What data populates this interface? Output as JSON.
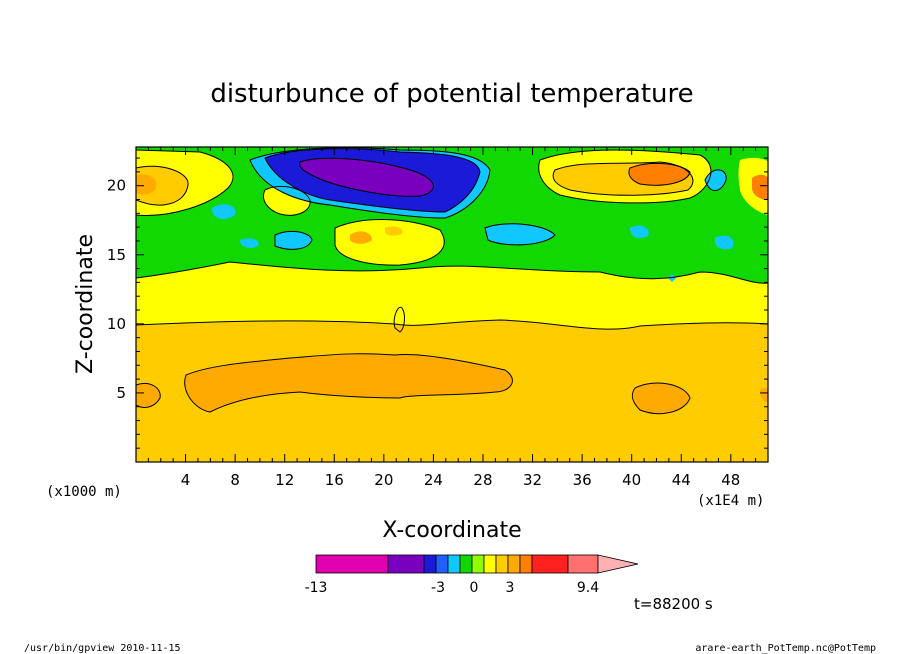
{
  "chart_data": {
    "type": "contour",
    "title": "disturbunce of potential temperature",
    "xlabel": "X-coordinate",
    "ylabel": "Z-coordinate",
    "x_unit_left": "(x1000 m)",
    "x_unit_right": "(x1E4 m)",
    "xlim": [
      0,
      51
    ],
    "ylim": [
      0,
      22.8
    ],
    "x_ticks": [
      4,
      8,
      12,
      16,
      20,
      24,
      28,
      32,
      36,
      40,
      44,
      48
    ],
    "y_ticks": [
      5,
      10,
      15,
      20
    ],
    "colorbar": {
      "colors": [
        "#e000b0",
        "#7a00c0",
        "#1a1ad8",
        "#2060ff",
        "#10c8ff",
        "#10d800",
        "#90ff00",
        "#ffff00",
        "#ffcc00",
        "#ffaa00",
        "#ff8000",
        "#ff2020",
        "#ff7070",
        "#ffb0b0"
      ],
      "labels": [
        "-13",
        "-3",
        "0",
        "3",
        "9.4"
      ]
    },
    "time_label": "t=88200 s"
  },
  "footer": {
    "left": "/usr/bin/gpview  2010-11-15",
    "right": "arare-earth_PotTemp.nc@PotTemp"
  }
}
